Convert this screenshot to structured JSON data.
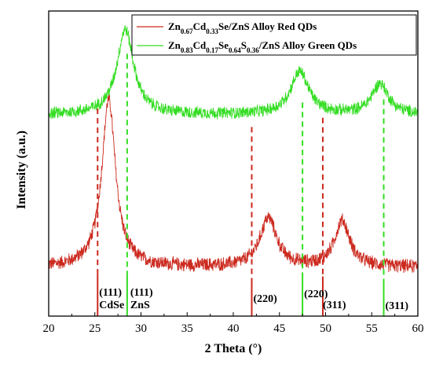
{
  "chart_data": {
    "type": "line",
    "title": "",
    "xlabel": "2 Theta (°)",
    "ylabel": "Intensity (a.u.)",
    "xlim": [
      20,
      60
    ],
    "ylim": [
      0,
      100
    ],
    "x_ticks": [
      20,
      25,
      30,
      35,
      40,
      45,
      50,
      55,
      60
    ],
    "legend_position": "top-right",
    "colors": {
      "red": "#cc2a1f",
      "green": "#33dd22"
    },
    "series": [
      {
        "name": "Zn0.67Cd0.33Se/ZnS Alloy Red QDs",
        "legend_parts": [
          [
            "Zn",
            false
          ],
          [
            "0.67",
            true
          ],
          [
            "Cd",
            false
          ],
          [
            "0.33",
            true
          ],
          [
            "Se/ZnS Alloy Red QDs",
            false
          ]
        ],
        "color_key": "red",
        "baseline": 16,
        "noise": 1.6,
        "peaks": [
          {
            "x": 26.5,
            "height": 55,
            "width": 0.9
          },
          {
            "x": 43.8,
            "height": 16,
            "width": 1.1
          },
          {
            "x": 51.8,
            "height": 15,
            "width": 1.0
          }
        ]
      },
      {
        "name": "Zn0.83Cd0.17Se0.64S0.36/ZnS Alloy Green QDs",
        "legend_parts": [
          [
            "Zn",
            false
          ],
          [
            "0.83",
            true
          ],
          [
            "Cd",
            false
          ],
          [
            "0.17",
            true
          ],
          [
            "Se",
            false
          ],
          [
            "0.64",
            true
          ],
          [
            "S",
            false
          ],
          [
            "0.36",
            true
          ],
          [
            "/ZnS Alloy Green QDs",
            false
          ]
        ],
        "color_key": "green",
        "baseline": 66,
        "noise": 1.4,
        "peaks": [
          {
            "x": 28.3,
            "height": 28,
            "width": 1.1
          },
          {
            "x": 47.2,
            "height": 14,
            "width": 1.2
          },
          {
            "x": 55.9,
            "height": 10,
            "width": 1.1
          }
        ]
      }
    ],
    "reference_lines": [
      {
        "x": 25.3,
        "color_key": "red",
        "y_top": 68,
        "y_dash_bottom": 14,
        "label": "(111)",
        "sublabel": "CdSe"
      },
      {
        "x": 28.5,
        "color_key": "green",
        "y_top": 86,
        "y_dash_bottom": 14,
        "label": "(111)",
        "sublabel": "ZnS"
      },
      {
        "x": 42.0,
        "color_key": "red",
        "y_top": 62,
        "y_dash_bottom": 12,
        "label": "(220)",
        "sublabel": ""
      },
      {
        "x": 47.5,
        "color_key": "green",
        "y_top": 70,
        "y_dash_bottom": 13,
        "label": "(220)",
        "sublabel": ""
      },
      {
        "x": 49.7,
        "color_key": "red",
        "y_top": 65,
        "y_dash_bottom": 13,
        "label": "(311)",
        "sublabel": ""
      },
      {
        "x": 56.3,
        "color_key": "green",
        "y_top": 71,
        "y_dash_bottom": 12,
        "label": "(311)",
        "sublabel": ""
      }
    ]
  }
}
